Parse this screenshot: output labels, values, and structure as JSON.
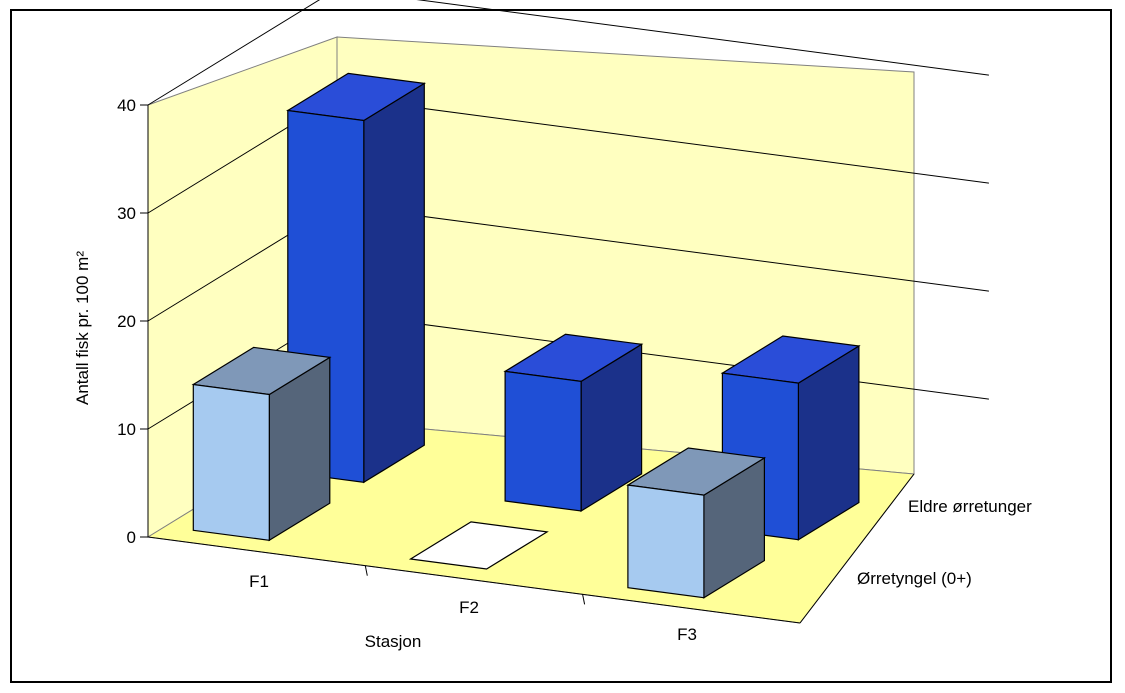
{
  "chart_data": {
    "type": "bar",
    "subtype": "3d-column",
    "categories": [
      "F1",
      "F2",
      "F3"
    ],
    "series": [
      {
        "name": "Ørretyngel (0+)",
        "values": [
          13.5,
          0,
          9.5
        ],
        "color": "#a6caf0"
      },
      {
        "name": "Eldre ørretunger",
        "values": [
          33.5,
          12,
          14.5
        ],
        "color": "#1f4fd6"
      }
    ],
    "xlabel": "Stasjon",
    "ylabel": "Antall fisk pr. 100 m²",
    "ylim": [
      0,
      40
    ],
    "yticks": [
      "0",
      "10",
      "20",
      "30",
      "40"
    ],
    "grid": true,
    "wall_color": "#ffffc0",
    "floor_color": "#ffff99"
  }
}
